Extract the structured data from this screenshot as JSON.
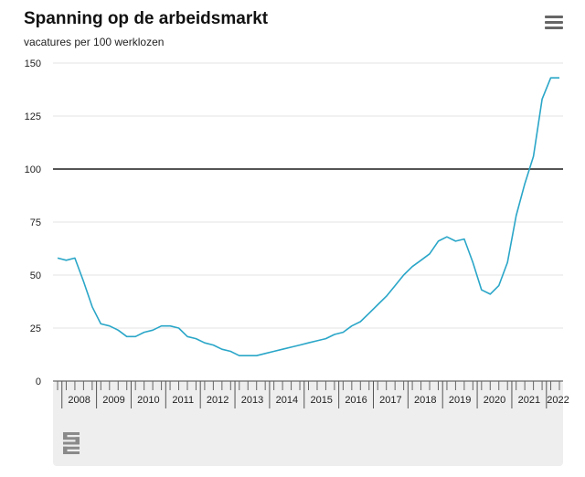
{
  "header": {
    "title": "Spanning op de arbeidsmarkt",
    "subtitle": "vacatures per 100 werklozen"
  },
  "menu": {
    "icon": "hamburger-menu-icon"
  },
  "logo": {
    "name": "cbs-logo"
  },
  "colors": {
    "line": "#2aa6c8",
    "reference": "#555555",
    "grid": "#e3e3e3",
    "axis_band": "#eeeeee"
  },
  "chart_data": {
    "type": "line",
    "title": "Spanning op de arbeidsmarkt",
    "subtitle": "vacatures per 100 werklozen",
    "xlabel": "",
    "ylabel": "",
    "ylim": [
      0,
      150
    ],
    "yticks": [
      0,
      25,
      50,
      75,
      100,
      125,
      150
    ],
    "grid": true,
    "reference_line": 100,
    "year_labels": [
      "2008",
      "2009",
      "2010",
      "2011",
      "2012",
      "2013",
      "2014",
      "2015",
      "2016",
      "2017",
      "2018",
      "2019",
      "2020",
      "2021",
      "2022"
    ],
    "series": [
      {
        "x": [
          "2007 Q4",
          "2008 Q1",
          "2008 Q2",
          "2008 Q3",
          "2008 Q4",
          "2009 Q1",
          "2009 Q2",
          "2009 Q3",
          "2009 Q4",
          "2010 Q1",
          "2010 Q2",
          "2010 Q3",
          "2010 Q4",
          "2011 Q1",
          "2011 Q2",
          "2011 Q3",
          "2011 Q4",
          "2012 Q1",
          "2012 Q2",
          "2012 Q3",
          "2012 Q4",
          "2013 Q1",
          "2013 Q2",
          "2013 Q3",
          "2013 Q4",
          "2014 Q1",
          "2014 Q2",
          "2014 Q3",
          "2014 Q4",
          "2015 Q1",
          "2015 Q2",
          "2015 Q3",
          "2015 Q4",
          "2016 Q1",
          "2016 Q2",
          "2016 Q3",
          "2016 Q4",
          "2017 Q1",
          "2017 Q2",
          "2017 Q3",
          "2017 Q4",
          "2018 Q1",
          "2018 Q2",
          "2018 Q3",
          "2018 Q4",
          "2019 Q1",
          "2019 Q2",
          "2019 Q3",
          "2019 Q4",
          "2020 Q1",
          "2020 Q2",
          "2020 Q3",
          "2020 Q4",
          "2021 Q1",
          "2021 Q2",
          "2021 Q3",
          "2021 Q4",
          "2022 Q1",
          "2022 Q2"
        ],
        "values": [
          58,
          57,
          58,
          47,
          35,
          27,
          26,
          24,
          21,
          21,
          23,
          24,
          26,
          26,
          25,
          21,
          20,
          18,
          17,
          15,
          14,
          12,
          12,
          12,
          13,
          14,
          15,
          16,
          17,
          18,
          19,
          20,
          22,
          23,
          26,
          28,
          32,
          36,
          40,
          45,
          50,
          54,
          57,
          60,
          66,
          68,
          66,
          67,
          56,
          43,
          41,
          45,
          56,
          78,
          93,
          106,
          133,
          143,
          143
        ]
      }
    ]
  }
}
